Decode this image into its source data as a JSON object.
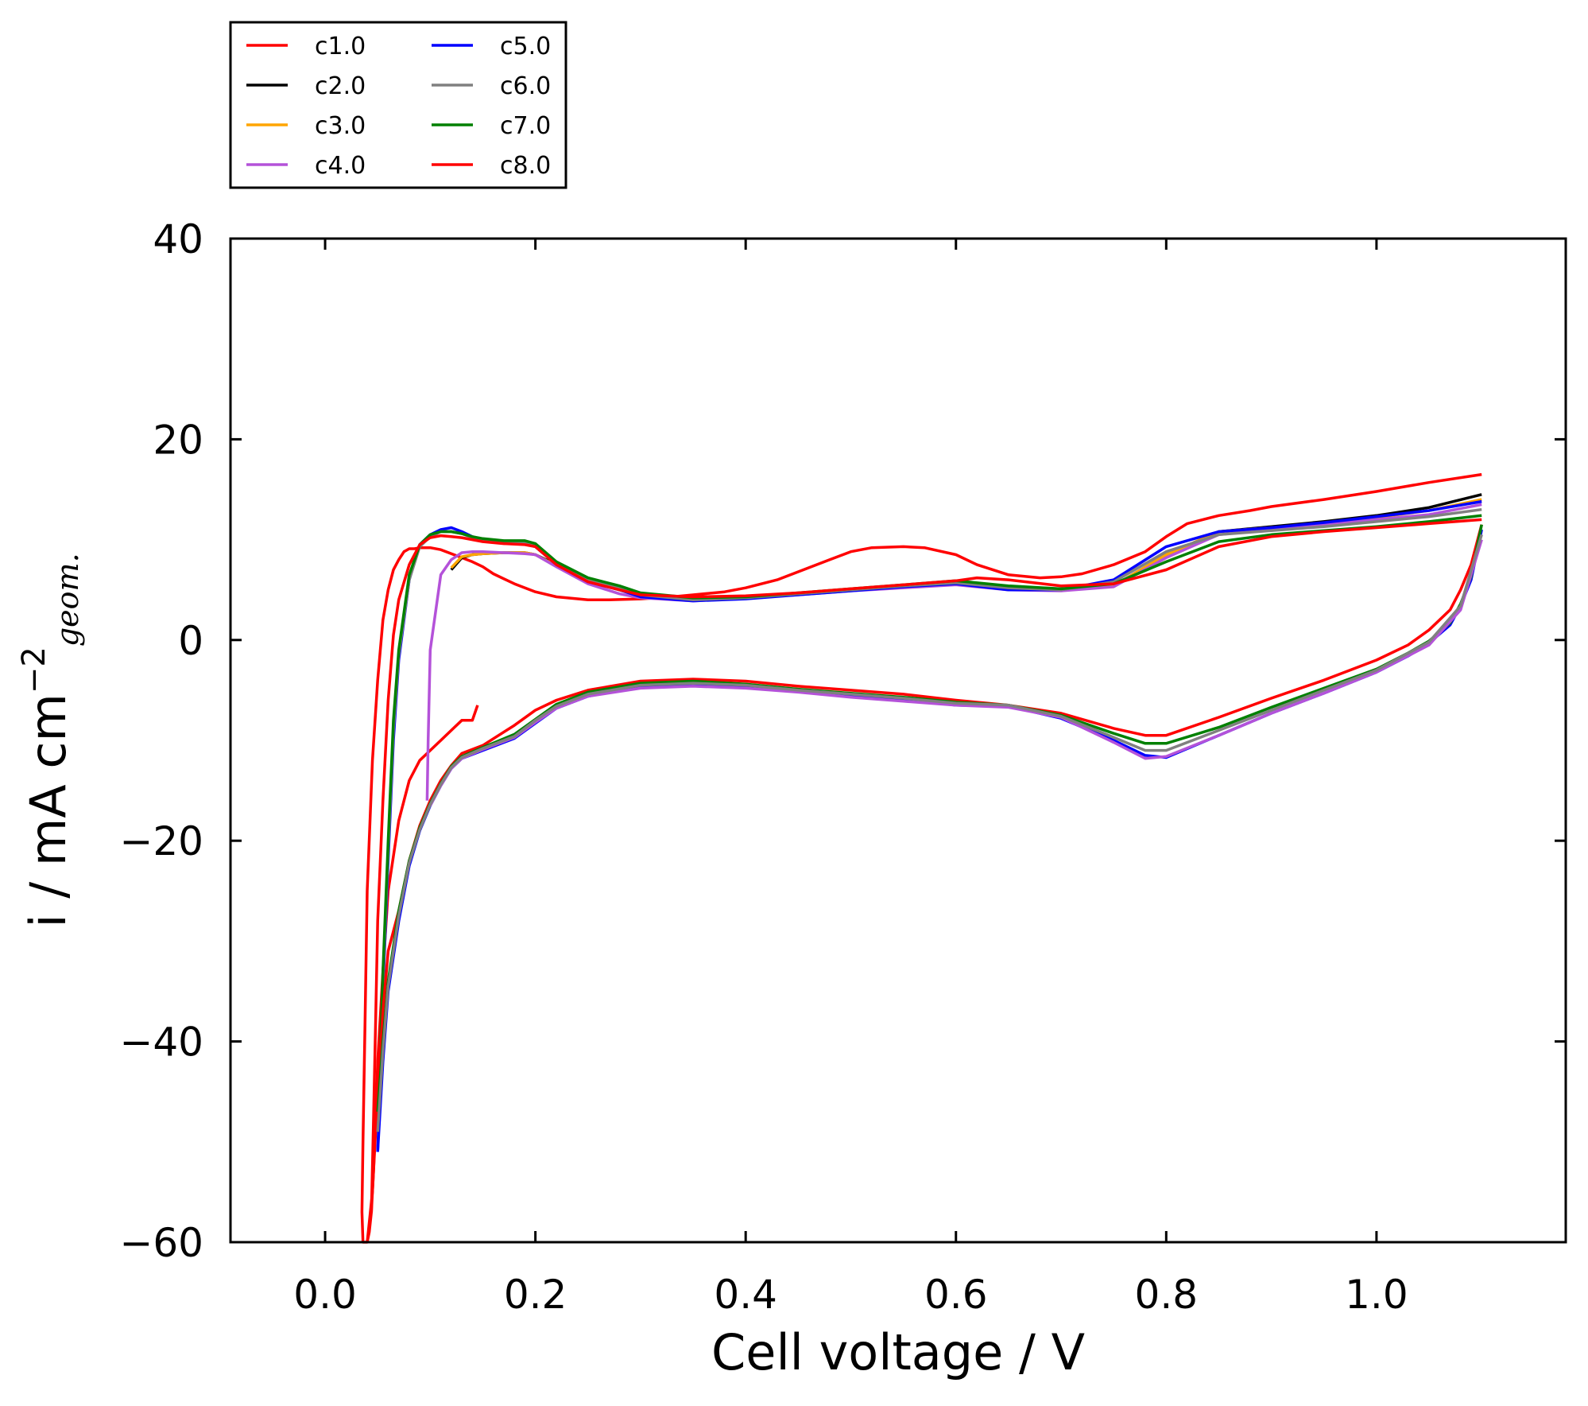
{
  "chart_data": {
    "type": "line",
    "xlabel": "Cell voltage / V",
    "ylabel": "i / mA cm",
    "ylabel_sup": "−2",
    "ylabel_sub": "geom.",
    "xlim": [
      -0.09,
      1.18
    ],
    "ylim": [
      -60,
      40
    ],
    "xticks": [
      0.0,
      0.2,
      0.4,
      0.6,
      0.8,
      1.0
    ],
    "xtick_labels": [
      "0.0",
      "0.2",
      "0.4",
      "0.6",
      "0.8",
      "1.0"
    ],
    "yticks": [
      -60,
      -40,
      -20,
      0,
      20,
      40
    ],
    "ytick_labels": [
      "−60",
      "−40",
      "−20",
      "0",
      "20",
      "40"
    ],
    "grid": false,
    "legend_position": "top-left, outside plot",
    "series": [
      {
        "name": "c1.0",
        "color": "#ff0000",
        "x": [
          0.145,
          0.14,
          0.13,
          0.12,
          0.11,
          0.1,
          0.09,
          0.08,
          0.07,
          0.06,
          0.055,
          0.05,
          0.048,
          0.046,
          0.044,
          0.042,
          0.04,
          0.038,
          0.036,
          0.035,
          0.036,
          0.038,
          0.04,
          0.045,
          0.05,
          0.055,
          0.06,
          0.065,
          0.07,
          0.075,
          0.08,
          0.085,
          0.09,
          0.1,
          0.11,
          0.12,
          0.13,
          0.14,
          0.15,
          0.16,
          0.18,
          0.2,
          0.22,
          0.25,
          0.27,
          0.3,
          0.33,
          0.35,
          0.38,
          0.4,
          0.43,
          0.45,
          0.48,
          0.5,
          0.52,
          0.55,
          0.57,
          0.6,
          0.62,
          0.65,
          0.68,
          0.7,
          0.72,
          0.75,
          0.78,
          0.8,
          0.82,
          0.85,
          0.88,
          0.9,
          0.95,
          1.0,
          1.05,
          1.1,
          1.1
        ],
        "y": [
          -6.5,
          -8,
          -8,
          -9,
          -10,
          -11,
          -12,
          -14,
          -18,
          -25,
          -33,
          -42,
          -48,
          -53,
          -57,
          -59,
          -60,
          -60,
          -60,
          -57,
          -50,
          -38,
          -25,
          -12,
          -4,
          2,
          5,
          7,
          8,
          8.8,
          9.1,
          9.1,
          9.2,
          9.2,
          9,
          8.6,
          8.2,
          7.8,
          7.3,
          6.6,
          5.6,
          4.8,
          4.3,
          4.0,
          4.0,
          4.1,
          4.3,
          4.5,
          4.8,
          5.2,
          6.0,
          6.8,
          8.0,
          8.8,
          9.2,
          9.3,
          9.2,
          8.5,
          7.5,
          6.5,
          6.2,
          6.3,
          6.6,
          7.5,
          8.8,
          10.3,
          11.6,
          12.4,
          12.9,
          13.3,
          14.0,
          14.8,
          15.7,
          16.5,
          16.5
        ]
      },
      {
        "name": "c2.0",
        "color": "#000000",
        "x": [
          0.12,
          0.13,
          0.14,
          0.15,
          0.17,
          0.19,
          0.2,
          0.22,
          0.25,
          0.28,
          0.3,
          0.35,
          0.4,
          0.45,
          0.5,
          0.55,
          0.6,
          0.65,
          0.7,
          0.75,
          0.8,
          0.85,
          0.9,
          0.95,
          1.0,
          1.05,
          1.1
        ],
        "y": [
          7,
          8.2,
          8.5,
          8.6,
          8.7,
          8.7,
          8.5,
          7.5,
          6,
          5,
          4.4,
          4.0,
          4.3,
          4.6,
          5.0,
          5.4,
          5.6,
          5.2,
          5.0,
          5.4,
          8.5,
          10.8,
          11.3,
          11.8,
          12.4,
          13.2,
          14.5
        ]
      },
      {
        "name": "c3.0",
        "color": "#ffa500",
        "x": [
          0.12,
          0.13,
          0.14,
          0.15,
          0.17,
          0.19,
          0.2,
          0.22,
          0.25,
          0.28,
          0.3,
          0.35,
          0.4,
          0.45,
          0.5,
          0.55,
          0.6,
          0.65,
          0.7,
          0.75,
          0.8,
          0.85,
          0.9,
          0.95,
          1.0,
          1.05,
          1.1
        ],
        "y": [
          7.2,
          8.3,
          8.5,
          8.6,
          8.7,
          8.7,
          8.5,
          7.4,
          6,
          5,
          4.4,
          4.0,
          4.3,
          4.6,
          5.0,
          5.4,
          5.6,
          5.2,
          5.0,
          5.4,
          8.5,
          10.8,
          11.2,
          11.6,
          12.2,
          12.9,
          14.0
        ]
      },
      {
        "name": "c4.0",
        "color": "#b452d9",
        "x": [
          0.097,
          0.098,
          0.1,
          0.11,
          0.12,
          0.13,
          0.14,
          0.15,
          0.17,
          0.19,
          0.2,
          0.22,
          0.25,
          0.28,
          0.3,
          0.35,
          0.4,
          0.45,
          0.5,
          0.55,
          0.6,
          0.65,
          0.7,
          0.75,
          0.8,
          0.85,
          0.9,
          0.95,
          1.0,
          1.05,
          1.1
        ],
        "y": [
          -16,
          -10,
          -1,
          6.5,
          8,
          8.7,
          8.8,
          8.8,
          8.7,
          8.6,
          8.5,
          7.3,
          5.6,
          4.6,
          4.2,
          3.9,
          4.2,
          4.5,
          4.9,
          5.2,
          5.5,
          5.0,
          4.9,
          5.3,
          8.2,
          10.5,
          11.0,
          11.5,
          12.0,
          12.5,
          13.5
        ]
      },
      {
        "name": "c5.0",
        "color": "#0000ff",
        "x": [
          0.05,
          0.052,
          0.055,
          0.06,
          0.065,
          0.07,
          0.08,
          0.09,
          0.1,
          0.11,
          0.12,
          0.13,
          0.14,
          0.15,
          0.17,
          0.19,
          0.2,
          0.22,
          0.25,
          0.28,
          0.3,
          0.35,
          0.4,
          0.45,
          0.5,
          0.55,
          0.6,
          0.65,
          0.7,
          0.75,
          0.8,
          0.85,
          0.9,
          0.95,
          1.0,
          1.05,
          1.1
        ],
        "y": [
          -51,
          -45,
          -35,
          -22,
          -10,
          -2,
          6,
          9.5,
          10.5,
          11,
          11.2,
          10.8,
          10.3,
          10,
          9.8,
          9.6,
          9.3,
          7.5,
          5.8,
          5.0,
          4.3,
          3.9,
          4.1,
          4.5,
          4.9,
          5.3,
          5.6,
          5.0,
          5.0,
          6.0,
          9.3,
          10.8,
          11.2,
          11.7,
          12.3,
          12.9,
          13.8
        ]
      },
      {
        "name": "c6.0",
        "color": "#808080",
        "x": [
          0.05,
          0.052,
          0.055,
          0.06,
          0.065,
          0.07,
          0.08,
          0.09,
          0.1,
          0.11,
          0.12,
          0.13,
          0.14,
          0.15,
          0.17,
          0.19,
          0.2,
          0.22,
          0.25,
          0.28,
          0.3,
          0.35,
          0.4,
          0.45,
          0.5,
          0.55,
          0.6,
          0.65,
          0.7,
          0.75,
          0.8,
          0.85,
          0.9,
          0.95,
          1.0,
          1.05,
          1.1
        ],
        "y": [
          -49,
          -44,
          -34,
          -21,
          -9,
          -1.5,
          6,
          9.3,
          10.3,
          10.8,
          10.8,
          10.6,
          10.2,
          10,
          9.8,
          9.7,
          9.4,
          7.5,
          5.9,
          5.2,
          4.5,
          4.0,
          4.2,
          4.6,
          5.0,
          5.4,
          5.7,
          5.2,
          5.0,
          5.8,
          8.8,
          10.5,
          10.9,
          11.3,
          11.8,
          12.3,
          13.0
        ]
      },
      {
        "name": "c7.0",
        "color": "#008000",
        "x": [
          0.05,
          0.052,
          0.055,
          0.06,
          0.065,
          0.07,
          0.08,
          0.09,
          0.1,
          0.11,
          0.12,
          0.13,
          0.14,
          0.15,
          0.17,
          0.19,
          0.2,
          0.22,
          0.25,
          0.28,
          0.3,
          0.35,
          0.4,
          0.45,
          0.5,
          0.55,
          0.6,
          0.65,
          0.7,
          0.75,
          0.8,
          0.85,
          0.9,
          0.95,
          1.0,
          1.05,
          1.1
        ],
        "y": [
          -48,
          -43,
          -33,
          -20,
          -8,
          -1,
          6.5,
          9.5,
          10.5,
          10.8,
          10.8,
          10.6,
          10.3,
          10.1,
          9.9,
          9.9,
          9.6,
          7.8,
          6.2,
          5.4,
          4.7,
          4.2,
          4.3,
          4.7,
          5.1,
          5.5,
          5.9,
          5.4,
          5.1,
          5.6,
          7.8,
          9.8,
          10.5,
          10.9,
          11.3,
          11.8,
          12.4
        ]
      },
      {
        "name": "c8.0",
        "color": "#ff0000",
        "x": [
          0.044,
          0.046,
          0.048,
          0.05,
          0.055,
          0.06,
          0.065,
          0.07,
          0.08,
          0.09,
          0.1,
          0.11,
          0.12,
          0.13,
          0.14,
          0.15,
          0.17,
          0.19,
          0.2,
          0.22,
          0.25,
          0.28,
          0.3,
          0.35,
          0.4,
          0.45,
          0.5,
          0.55,
          0.6,
          0.62,
          0.65,
          0.7,
          0.75,
          0.8,
          0.85,
          0.9,
          0.95,
          1.0,
          1.05,
          1.1
        ],
        "y": [
          -57,
          -48,
          -38,
          -28,
          -16,
          -6,
          0.5,
          4,
          7.5,
          9.5,
          10.2,
          10.4,
          10.3,
          10.2,
          10.0,
          9.8,
          9.6,
          9.5,
          9.3,
          7.5,
          5.8,
          5.0,
          4.5,
          4.3,
          4.4,
          4.7,
          5.1,
          5.5,
          5.9,
          6.2,
          6.0,
          5.4,
          5.6,
          7.0,
          9.3,
          10.3,
          10.8,
          11.2,
          11.6,
          12.0
        ]
      },
      {
        "name": "c1.0",
        "color": "#ff0000",
        "x": [
          0.04,
          0.045,
          0.05,
          0.055,
          0.06,
          0.07,
          0.08,
          0.09,
          0.1,
          0.11,
          0.12,
          0.13,
          0.15,
          0.18,
          0.2,
          0.22,
          0.25,
          0.3,
          0.35,
          0.4,
          0.45,
          0.5,
          0.55,
          0.6,
          0.65,
          0.7,
          0.75,
          0.78,
          0.8,
          0.85,
          0.9,
          0.95,
          1.0,
          1.03,
          1.05,
          1.07,
          1.08,
          1.09,
          1.1
        ],
        "y": [
          -60,
          -55,
          -45,
          -37,
          -31,
          -27,
          -22,
          -18.5,
          -16,
          -14,
          -12.5,
          -11.3,
          -10.5,
          -8.5,
          -7,
          -6,
          -5,
          -4.1,
          -3.9,
          -4.1,
          -4.6,
          -5.0,
          -5.4,
          -6.0,
          -6.5,
          -7.3,
          -8.8,
          -9.5,
          -9.5,
          -7.7,
          -5.8,
          -4.0,
          -2.0,
          -0.5,
          1.0,
          3.0,
          5.0,
          7.5,
          11.5
        ]
      },
      {
        "name": "c5.0",
        "color": "#0000ff",
        "x": [
          0.05,
          0.055,
          0.06,
          0.07,
          0.08,
          0.09,
          0.1,
          0.11,
          0.12,
          0.13,
          0.15,
          0.18,
          0.2,
          0.22,
          0.25,
          0.3,
          0.35,
          0.4,
          0.45,
          0.5,
          0.55,
          0.6,
          0.65,
          0.7,
          0.75,
          0.78,
          0.8,
          0.85,
          0.9,
          0.95,
          1.0,
          1.03,
          1.05,
          1.07,
          1.08,
          1.09,
          1.1
        ],
        "y": [
          -51,
          -42,
          -35,
          -28,
          -22.5,
          -19,
          -16.5,
          -14.5,
          -12.8,
          -11.8,
          -11.0,
          -9.8,
          -8.3,
          -6.8,
          -5.6,
          -4.6,
          -4.4,
          -4.6,
          -5.1,
          -5.5,
          -5.9,
          -6.5,
          -6.6,
          -7.8,
          -10.0,
          -11.5,
          -11.7,
          -9.5,
          -7.3,
          -5.3,
          -3.2,
          -1.6,
          -0.3,
          1.5,
          3.4,
          6.0,
          11.0
        ]
      },
      {
        "name": "c7.0",
        "color": "#008000",
        "x": [
          0.05,
          0.055,
          0.06,
          0.07,
          0.08,
          0.09,
          0.1,
          0.11,
          0.12,
          0.13,
          0.15,
          0.18,
          0.2,
          0.22,
          0.25,
          0.3,
          0.35,
          0.4,
          0.45,
          0.5,
          0.55,
          0.6,
          0.65,
          0.7,
          0.75,
          0.78,
          0.8,
          0.85,
          0.9,
          0.95,
          1.0,
          1.03,
          1.05,
          1.07,
          1.08,
          1.09,
          1.1
        ],
        "y": [
          -47,
          -40,
          -34,
          -27,
          -22,
          -18.7,
          -16.3,
          -14.3,
          -12.6,
          -11.6,
          -10.7,
          -9.4,
          -7.9,
          -6.4,
          -5.2,
          -4.3,
          -4.1,
          -4.4,
          -4.9,
          -5.3,
          -5.7,
          -6.2,
          -6.5,
          -7.5,
          -9.3,
          -10.3,
          -10.3,
          -8.7,
          -6.7,
          -4.8,
          -2.9,
          -1.3,
          -0.1,
          1.7,
          3.6,
          6.3,
          11.5
        ]
      },
      {
        "name": "c4.0",
        "color": "#b452d9",
        "x": [
          0.1,
          0.11,
          0.12,
          0.13,
          0.15,
          0.18,
          0.2,
          0.22,
          0.25,
          0.3,
          0.35,
          0.4,
          0.45,
          0.5,
          0.55,
          0.6,
          0.65,
          0.7,
          0.75,
          0.78,
          0.8,
          0.85,
          0.9,
          0.95,
          1.0,
          1.05,
          1.08,
          1.1
        ],
        "y": [
          -16.5,
          -14.5,
          -12.8,
          -11.8,
          -10.9,
          -9.7,
          -8.2,
          -6.8,
          -5.6,
          -4.8,
          -4.6,
          -4.8,
          -5.2,
          -5.7,
          -6.1,
          -6.5,
          -6.7,
          -7.7,
          -10.2,
          -11.8,
          -11.6,
          -9.5,
          -7.3,
          -5.3,
          -3.2,
          -0.5,
          3.0,
          10.0
        ]
      },
      {
        "name": "c6.0",
        "color": "#808080",
        "x": [
          0.05,
          0.055,
          0.06,
          0.07,
          0.08,
          0.09,
          0.1,
          0.11,
          0.12,
          0.13,
          0.15,
          0.18,
          0.2,
          0.22,
          0.25,
          0.3,
          0.35,
          0.4,
          0.45,
          0.5,
          0.55,
          0.6,
          0.65,
          0.7,
          0.75,
          0.78,
          0.8,
          0.85,
          0.9,
          0.95,
          1.0,
          1.05,
          1.08,
          1.1
        ],
        "y": [
          -49,
          -41,
          -34.5,
          -27.5,
          -22.2,
          -18.9,
          -16.4,
          -14.4,
          -12.7,
          -11.7,
          -10.8,
          -9.6,
          -8.0,
          -6.6,
          -5.4,
          -4.5,
          -4.3,
          -4.5,
          -5.0,
          -5.4,
          -5.8,
          -6.3,
          -6.5,
          -7.6,
          -9.7,
          -11.0,
          -11.0,
          -9.0,
          -7.0,
          -5.0,
          -3.0,
          -0.2,
          3.4,
          10.5
        ]
      }
    ]
  }
}
